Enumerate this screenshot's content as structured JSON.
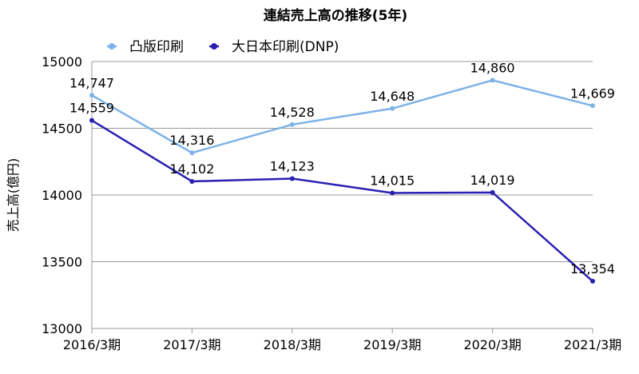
{
  "chart_data": {
    "type": "line",
    "title": "連結売上高の推移(5年)",
    "ylabel": "売上高(億円)",
    "xlabel": "",
    "categories": [
      "2016/3期",
      "2017/3期",
      "2018/3期",
      "2019/3期",
      "2020/3期",
      "2021/3期"
    ],
    "ylim": [
      13000,
      15000
    ],
    "yticks": [
      13000,
      13500,
      14000,
      14500,
      15000
    ],
    "grid": "horizontal",
    "legend": "top-left",
    "series": [
      {
        "name": "凸版印刷",
        "color": "#7db3e6",
        "values": [
          14747,
          14316,
          14528,
          14648,
          14860,
          14669
        ],
        "labels": [
          "14,747",
          "14,316",
          "14,528",
          "14,648",
          "14,860",
          "14,669"
        ]
      },
      {
        "name": "大日本印刷(DNP)",
        "color": "#2a1fb2",
        "values": [
          14559,
          14102,
          14123,
          14015,
          14019,
          13354
        ],
        "labels": [
          "14,559",
          "14,102",
          "14,123",
          "14,015",
          "14,019",
          "13,354"
        ]
      }
    ]
  }
}
